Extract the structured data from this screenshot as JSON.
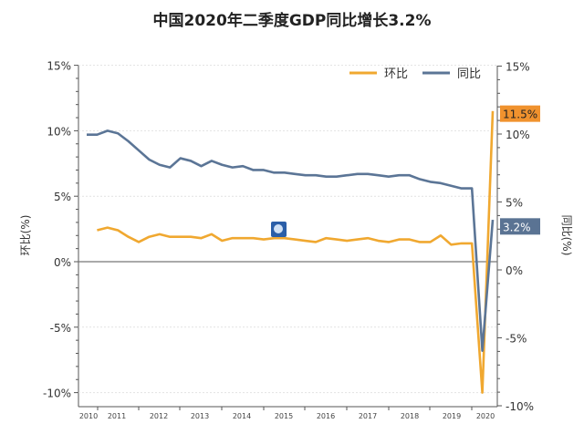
{
  "chart_data": {
    "type": "line",
    "title": "中国2020年二季度GDP同比增长3.2%",
    "ylabel_left": "环比(%)",
    "ylabel_right": "同比(%)",
    "x_tick_labels": [
      "2010",
      "2011",
      "2012",
      "2013",
      "2014",
      "2015",
      "2016",
      "2017",
      "2018",
      "2019",
      "2020"
    ],
    "y_left": {
      "range": [
        -10,
        15
      ],
      "ticks": [
        "-10%",
        "-5%",
        "0%",
        "5%",
        "10%",
        "15%"
      ]
    },
    "y_right": {
      "range": [
        -10,
        15
      ],
      "ticks": [
        "-10%",
        "-5%",
        "0%",
        "5%",
        "10%",
        "15%"
      ]
    },
    "legend_position": "top-right",
    "grid": true,
    "series": [
      {
        "name": "环比",
        "axis": "left",
        "color": "#f0a830",
        "values": [
          null,
          2.4,
          2.6,
          2.4,
          1.9,
          1.5,
          1.9,
          2.1,
          1.9,
          1.9,
          1.9,
          1.8,
          2.1,
          1.6,
          1.8,
          1.8,
          1.8,
          1.7,
          1.8,
          1.8,
          1.7,
          1.6,
          1.5,
          1.8,
          1.7,
          1.6,
          1.7,
          1.8,
          1.6,
          1.5,
          1.7,
          1.7,
          1.5,
          1.5,
          2.0,
          1.3,
          1.4,
          1.4,
          -10.0,
          11.5
        ],
        "end_label": "11.5%",
        "end_label_color": "#f0922e"
      },
      {
        "name": "同比",
        "axis": "right",
        "color": "#5b7596",
        "values": [
          9.7,
          9.7,
          10.0,
          9.8,
          9.2,
          8.5,
          7.8,
          7.4,
          7.2,
          7.9,
          7.7,
          7.3,
          7.7,
          7.4,
          7.2,
          7.3,
          7.0,
          7.0,
          6.8,
          6.8,
          6.7,
          6.6,
          6.6,
          6.5,
          6.5,
          6.6,
          6.7,
          6.7,
          6.6,
          6.5,
          6.6,
          6.6,
          6.3,
          6.1,
          6.0,
          5.8,
          5.6,
          5.6,
          -6.8,
          3.2
        ],
        "end_label": "3.2%",
        "end_label_color": "#5a7393"
      }
    ]
  }
}
